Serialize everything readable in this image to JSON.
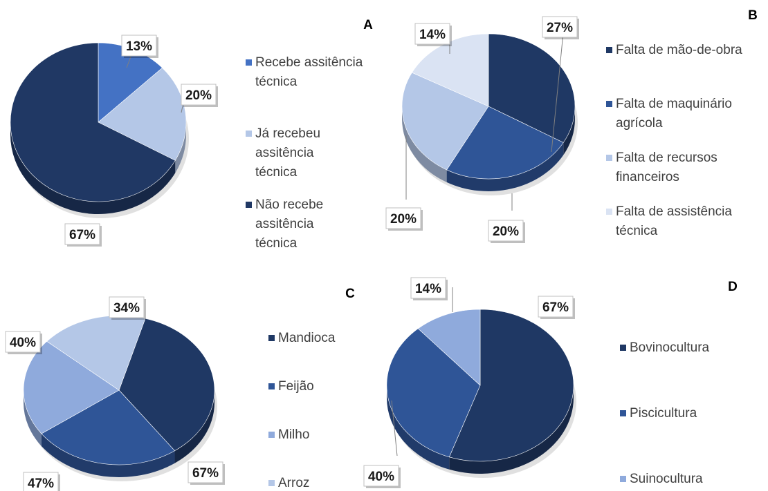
{
  "chart_data": [
    {
      "type": "pie",
      "panel": "A",
      "unit": "%",
      "slices": [
        {
          "label": "Recebe assitência técnica",
          "value": 13,
          "label_text": "13%",
          "color": "#4472c4"
        },
        {
          "label": "Já recebeu assitência técnica",
          "value": 20,
          "label_text": "20%",
          "color": "#b4c7e7"
        },
        {
          "label": "Não recebe assitência técnica",
          "value": 67,
          "label_text": "67%",
          "color": "#203864"
        }
      ],
      "legend_position": "right"
    },
    {
      "type": "pie",
      "panel": "B",
      "unit": "%",
      "slices": [
        {
          "label": "Falta de mão-de-obra",
          "value": 27,
          "label_text": "27%",
          "color": "#1f3864"
        },
        {
          "label": "Falta de maquinário agrícola",
          "value": 20,
          "label_text": "20%",
          "color": "#2f5597"
        },
        {
          "label": "Falta de recursos financeiros",
          "value": 20,
          "label_text": "20%",
          "color": "#b4c7e7"
        },
        {
          "label": "Falta de assistência técnica",
          "value": 14,
          "label_text": "14%",
          "color": "#dae3f3"
        }
      ],
      "legend_position": "right"
    },
    {
      "type": "pie",
      "panel": "C",
      "unit": "%",
      "slices": [
        {
          "label": "Mandioca",
          "value": 67,
          "label_text": "67%",
          "color": "#1f3864"
        },
        {
          "label": "Feijão",
          "value": 47,
          "label_text": "47%",
          "color": "#2f5597"
        },
        {
          "label": "Milho",
          "value": 40,
          "label_text": "40%",
          "color": "#8faadc"
        },
        {
          "label": "Arroz",
          "value": 34,
          "label_text": "34%",
          "color": "#b4c7e7"
        }
      ],
      "legend_position": "right"
    },
    {
      "type": "pie",
      "panel": "D",
      "unit": "%",
      "slices": [
        {
          "label": "Bovinocultura",
          "value": 67,
          "label_text": "67%",
          "color": "#1f3864"
        },
        {
          "label": "Piscicultura",
          "value": 40,
          "label_text": "40%",
          "color": "#2f5597"
        },
        {
          "label": "Suinocultura",
          "value": 14,
          "label_text": "14%",
          "color": "#8faadc"
        }
      ],
      "legend_position": "right"
    }
  ]
}
